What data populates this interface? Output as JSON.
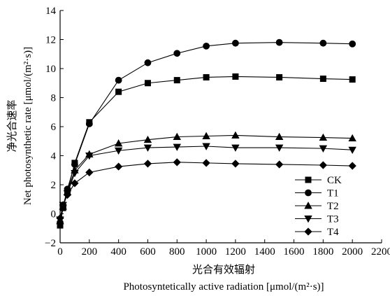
{
  "chart_data": {
    "type": "line",
    "xlabel_cn": "光合有效辐射",
    "xlabel_en": "Photosyntetically active radiation [μmol/(m²·s)]",
    "ylabel_cn": "净光合速率",
    "ylabel_en": "Net photosynthetic rate [μmol/(m²·s)]",
    "xlim": [
      0,
      2200
    ],
    "ylim": [
      -2,
      14
    ],
    "xticks": [
      0,
      200,
      400,
      600,
      800,
      1000,
      1200,
      1400,
      1600,
      1800,
      2000,
      2200
    ],
    "yticks": [
      -2,
      0,
      2,
      4,
      6,
      8,
      10,
      12,
      14
    ],
    "x": [
      0,
      20,
      50,
      100,
      200,
      400,
      600,
      800,
      1000,
      1200,
      1500,
      1800,
      2000
    ],
    "series": [
      {
        "name": "CK",
        "marker": "square",
        "values": [
          -0.8,
          0.4,
          1.5,
          3.5,
          6.3,
          8.4,
          9.0,
          9.2,
          9.4,
          9.45,
          9.4,
          9.3,
          9.25
        ]
      },
      {
        "name": "T1",
        "marker": "circle",
        "values": [
          -0.6,
          0.5,
          1.7,
          3.4,
          6.2,
          9.2,
          10.4,
          11.05,
          11.55,
          11.75,
          11.8,
          11.75,
          11.7
        ]
      },
      {
        "name": "T2",
        "marker": "triangle-up",
        "values": [
          -0.5,
          0.5,
          1.5,
          3.0,
          4.1,
          4.85,
          5.1,
          5.3,
          5.35,
          5.4,
          5.3,
          5.25,
          5.2
        ]
      },
      {
        "name": "T3",
        "marker": "triangle-down",
        "values": [
          -0.4,
          0.6,
          1.4,
          2.8,
          4.0,
          4.35,
          4.55,
          4.6,
          4.65,
          4.55,
          4.55,
          4.5,
          4.4
        ]
      },
      {
        "name": "T4",
        "marker": "diamond",
        "values": [
          -0.3,
          0.6,
          1.3,
          2.1,
          2.85,
          3.25,
          3.45,
          3.55,
          3.5,
          3.45,
          3.4,
          3.35,
          3.3
        ]
      }
    ],
    "legend_position": "bottom-right",
    "grid": false
  }
}
